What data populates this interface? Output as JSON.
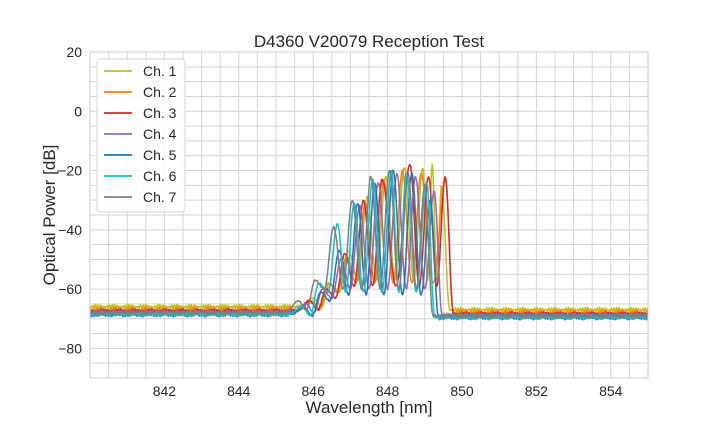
{
  "chart_data": {
    "type": "line",
    "title": "D4360 V20079 Reception Test",
    "xlabel": "Wavelength [nm]",
    "ylabel": "Optical Power [dB]",
    "xlim": [
      840,
      855
    ],
    "ylim": [
      -90,
      20
    ],
    "xticks": [
      "842",
      "844",
      "846",
      "848",
      "850",
      "852",
      "854"
    ],
    "yticks": [
      "20",
      "0",
      "−20",
      "−40",
      "−60",
      "−80"
    ],
    "grid": true,
    "minor_grid": {
      "x_step_nm": 0.5,
      "y_step_db": 5
    },
    "legend_position": "upper-left",
    "series": [
      {
        "name": "Ch. 1",
        "color": "#bcbd22",
        "baseline_left": -66,
        "baseline_right": -67,
        "dip": -57,
        "peaks": [
          [
            846.0,
            -63
          ],
          [
            846.45,
            -58
          ],
          [
            846.95,
            -47
          ],
          [
            847.45,
            -29
          ],
          [
            847.95,
            -22
          ],
          [
            848.45,
            -19
          ],
          [
            848.95,
            -19
          ],
          [
            849.2,
            -18
          ],
          [
            849.45,
            -25
          ]
        ]
      },
      {
        "name": "Ch. 2",
        "color": "#ff7f0e",
        "baseline_left": -67,
        "baseline_right": -68,
        "dip": -58,
        "peaks": [
          [
            845.95,
            -64
          ],
          [
            846.4,
            -58
          ],
          [
            846.9,
            -49
          ],
          [
            847.4,
            -31
          ],
          [
            847.9,
            -23
          ],
          [
            848.4,
            -20
          ],
          [
            848.9,
            -21
          ],
          [
            849.55,
            -23
          ]
        ]
      },
      {
        "name": "Ch. 3",
        "color": "#d62728",
        "baseline_left": -67.5,
        "baseline_right": -68.5,
        "dip": -59,
        "peaks": [
          [
            845.9,
            -64
          ],
          [
            846.35,
            -60
          ],
          [
            846.85,
            -48
          ],
          [
            847.35,
            -30
          ],
          [
            847.85,
            -23
          ],
          [
            848.6,
            -18
          ],
          [
            849.1,
            -22
          ],
          [
            849.55,
            -22
          ]
        ]
      },
      {
        "name": "Ch. 4",
        "color": "#9467bd",
        "baseline_left": -68,
        "baseline_right": -69,
        "dip": -60,
        "peaks": [
          [
            845.8,
            -65
          ],
          [
            846.25,
            -60
          ],
          [
            846.75,
            -50
          ],
          [
            847.25,
            -32
          ],
          [
            847.75,
            -24
          ],
          [
            848.25,
            -21
          ],
          [
            848.75,
            -22
          ],
          [
            849.25,
            -27
          ]
        ]
      },
      {
        "name": "Ch. 5",
        "color": "#1f77b4",
        "baseline_left": -68.5,
        "baseline_right": -69.5,
        "dip": -62,
        "peaks": [
          [
            845.75,
            -66
          ],
          [
            846.2,
            -61
          ],
          [
            846.7,
            -47
          ],
          [
            847.2,
            -31
          ],
          [
            847.65,
            -24
          ],
          [
            848.15,
            -20
          ],
          [
            848.65,
            -21
          ],
          [
            849.15,
            -30
          ]
        ]
      },
      {
        "name": "Ch. 6",
        "color": "#17becf",
        "baseline_left": -68.5,
        "baseline_right": -69.5,
        "dip": -61,
        "peaks": [
          [
            845.7,
            -66
          ],
          [
            846.15,
            -58
          ],
          [
            846.65,
            -38
          ],
          [
            847.1,
            -31
          ],
          [
            847.6,
            -23
          ],
          [
            848.1,
            -20
          ],
          [
            848.5,
            -21
          ],
          [
            849.05,
            -24
          ]
        ]
      },
      {
        "name": "Ch. 7",
        "color": "#7f7f7f",
        "baseline_left": -68,
        "baseline_right": -69,
        "dip": -60,
        "peaks": [
          [
            845.6,
            -64
          ],
          [
            846.05,
            -57
          ],
          [
            846.55,
            -39
          ],
          [
            847.05,
            -30
          ],
          [
            847.55,
            -22
          ],
          [
            848.05,
            -20
          ],
          [
            848.55,
            -21
          ],
          [
            849.0,
            -25
          ]
        ]
      }
    ]
  }
}
